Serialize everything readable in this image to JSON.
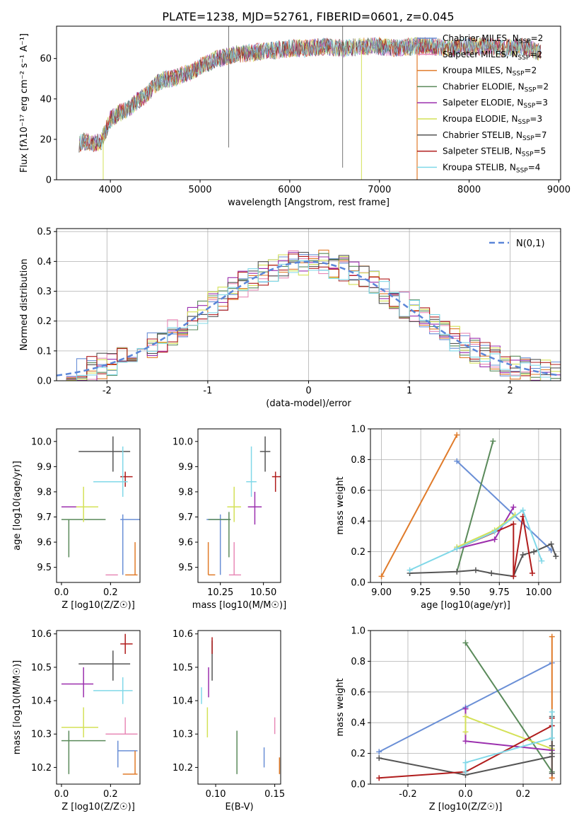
{
  "title": "PLATE=1238, MJD=52761, FIBERID=0601, z=0.045",
  "colors": {
    "chabrier_miles": "#6a8fd6",
    "salpeter_miles": "#e88ab7",
    "kroupa_miles": "#e07b2a",
    "chabrier_elodie": "#5a8a5a",
    "salpeter_elodie": "#9b2fae",
    "kroupa_elodie": "#d4e157",
    "chabrier_stelib": "#555555",
    "salpeter_stelib": "#b01c1c",
    "kroupa_stelib": "#80d8e8"
  },
  "chart_data": [
    {
      "id": "spectrum",
      "type": "line",
      "title": "PLATE=1238, MJD=52761, FIBERID=0601, z=0.045",
      "xlabel": "wavelength [Angstrom, rest frame]",
      "ylabel": "Flux [fλ10⁻¹⁷ erg cm⁻² s⁻¹ A⁻¹]",
      "xlim": [
        3400,
        9020
      ],
      "ylim": [
        0,
        76
      ],
      "xticks": [
        4000,
        5000,
        6000,
        7000,
        8000,
        9000
      ],
      "yticks": [
        0,
        20,
        40,
        60
      ],
      "continuum": {
        "x": [
          3650,
          3700,
          3800,
          3900,
          4000,
          4100,
          4200,
          4300,
          4400,
          4500,
          4600,
          4700,
          4800,
          4900,
          5000,
          5200,
          5400,
          5600,
          5800,
          6000,
          6200,
          6400,
          6600,
          6800,
          7000,
          7200,
          7400,
          7600,
          7800,
          8000,
          8200,
          8400,
          8600,
          8800
        ],
        "y": [
          18,
          19,
          18,
          19,
          30,
          33,
          35,
          39,
          42,
          47,
          50,
          50,
          52,
          53,
          56,
          60,
          62,
          63,
          64,
          65,
          65,
          66,
          65,
          66,
          66,
          65,
          66,
          66,
          65,
          66,
          66,
          65,
          66,
          63
        ]
      },
      "legend": [
        {
          "name": "Chabrier MILES, N_SSP=2",
          "color": "#6a8fd6"
        },
        {
          "name": "Salpeter MILES, N_SSP=2",
          "color": "#e88ab7"
        },
        {
          "name": "Kroupa MILES, N_SSP=2",
          "color": "#e07b2a"
        },
        {
          "name": "Chabrier ELODIE, N_SSP=2",
          "color": "#5a8a5a"
        },
        {
          "name": "Salpeter ELODIE, N_SSP=3",
          "color": "#9b2fae"
        },
        {
          "name": "Kroupa ELODIE, N_SSP=3",
          "color": "#d4e157"
        },
        {
          "name": "Chabrier STELIB, N_SSP=7",
          "color": "#555555"
        },
        {
          "name": "Salpeter STELIB, N_SSP=5",
          "color": "#b01c1c"
        },
        {
          "name": "Kroupa STELIB, N_SSP=4",
          "color": "#80d8e8"
        }
      ]
    },
    {
      "id": "residuals",
      "type": "histogram",
      "xlabel": "(data-model)/error",
      "ylabel": "Normed distribution",
      "xlim": [
        -2.5,
        2.5
      ],
      "ylim": [
        0,
        0.51
      ],
      "xticks": [
        -2,
        -1,
        0,
        1,
        2
      ],
      "yticks": [
        0.0,
        0.1,
        0.2,
        0.3,
        0.4,
        0.5
      ],
      "legend": "N(0,1)",
      "gaussian": {
        "mean": 0,
        "sigma": 1
      }
    },
    {
      "id": "age_vs_Z",
      "type": "errorbar",
      "xlabel": "Z [log10(Z/Z☉)]",
      "ylabel": "age  [log10(age/yr)]",
      "xlim": [
        -0.02,
        0.32
      ],
      "ylim": [
        9.44,
        10.05
      ],
      "xticks": [
        0.0,
        0.2
      ],
      "yticks": [
        9.5,
        9.6,
        9.7,
        9.8,
        9.9,
        10.0
      ],
      "points": [
        {
          "series": "chabrier_miles",
          "x": 0.25,
          "y": 9.69,
          "x_lo": 0.24,
          "x_hi": 0.32,
          "y_lo": 9.47,
          "y_hi": 9.71
        },
        {
          "series": "salpeter_miles",
          "x": 0.2,
          "y": 9.47,
          "x_lo": 0.18,
          "x_hi": 0.23,
          "y_lo": 9.47,
          "y_hi": 9.47
        },
        {
          "series": "kroupa_miles",
          "x": 0.3,
          "y": 9.47,
          "x_lo": 0.26,
          "x_hi": 0.31,
          "y_lo": 9.47,
          "y_hi": 9.6
        },
        {
          "series": "chabrier_elodie",
          "x": 0.03,
          "y": 9.69,
          "x_lo": 0.0,
          "x_hi": 0.18,
          "y_lo": 9.54,
          "y_hi": 9.69
        },
        {
          "series": "salpeter_elodie",
          "x": 0.05,
          "y": 9.74,
          "x_lo": 0.0,
          "x_hi": 0.13,
          "y_lo": 9.74,
          "y_hi": 9.74
        },
        {
          "series": "kroupa_elodie",
          "x": 0.09,
          "y": 9.74,
          "x_lo": 0.06,
          "x_hi": 0.15,
          "y_lo": 9.68,
          "y_hi": 9.82
        },
        {
          "series": "chabrier_stelib",
          "x": 0.21,
          "y": 9.96,
          "x_lo": 0.07,
          "x_hi": 0.28,
          "y_lo": 9.88,
          "y_hi": 10.02
        },
        {
          "series": "salpeter_stelib",
          "x": 0.26,
          "y": 9.86,
          "x_lo": 0.24,
          "x_hi": 0.29,
          "y_lo": 9.82,
          "y_hi": 9.88
        },
        {
          "series": "kroupa_stelib",
          "x": 0.25,
          "y": 9.84,
          "x_lo": 0.13,
          "x_hi": 0.27,
          "y_lo": 9.78,
          "y_hi": 9.98
        }
      ]
    },
    {
      "id": "age_vs_mass",
      "type": "errorbar",
      "xlabel": "mass [log10(M/M☉)]",
      "xlim": [
        10.12,
        10.6
      ],
      "ylim": [
        9.44,
        10.05
      ],
      "xticks": [
        10.25,
        10.5
      ],
      "yticks": [
        9.5,
        9.6,
        9.7,
        9.8,
        9.9,
        10.0
      ],
      "points": [
        {
          "series": "chabrier_miles",
          "x": 10.25,
          "y": 9.69,
          "x_lo": 10.17,
          "x_hi": 10.3,
          "y_lo": 9.47,
          "y_hi": 9.71
        },
        {
          "series": "salpeter_miles",
          "x": 10.33,
          "y": 9.47,
          "x_lo": 10.3,
          "x_hi": 10.37,
          "y_lo": 9.47,
          "y_hi": 9.6
        },
        {
          "series": "kroupa_miles",
          "x": 10.18,
          "y": 9.47,
          "x_lo": 10.18,
          "x_hi": 10.22,
          "y_lo": 9.47,
          "y_hi": 9.6
        },
        {
          "series": "chabrier_elodie",
          "x": 10.3,
          "y": 9.69,
          "x_lo": 10.18,
          "x_hi": 10.31,
          "y_lo": 9.54,
          "y_hi": 9.72
        },
        {
          "series": "salpeter_elodie",
          "x": 10.45,
          "y": 9.74,
          "x_lo": 10.41,
          "x_hi": 10.49,
          "y_lo": 9.67,
          "y_hi": 9.8
        },
        {
          "series": "kroupa_elodie",
          "x": 10.33,
          "y": 9.74,
          "x_lo": 10.29,
          "x_hi": 10.37,
          "y_lo": 9.68,
          "y_hi": 9.82
        },
        {
          "series": "chabrier_stelib",
          "x": 10.51,
          "y": 9.96,
          "x_lo": 10.48,
          "x_hi": 10.54,
          "y_lo": 9.88,
          "y_hi": 10.02
        },
        {
          "series": "salpeter_stelib",
          "x": 10.57,
          "y": 9.86,
          "x_lo": 10.55,
          "x_hi": 10.6,
          "y_lo": 9.8,
          "y_hi": 9.88
        },
        {
          "series": "kroupa_stelib",
          "x": 10.43,
          "y": 9.84,
          "x_lo": 10.4,
          "x_hi": 10.46,
          "y_lo": 9.78,
          "y_hi": 9.98
        }
      ]
    },
    {
      "id": "mass_weight_vs_age",
      "type": "line",
      "xlabel": "age  [log10(age/yr)]",
      "ylabel": "mass weight",
      "xlim": [
        8.93,
        10.14
      ],
      "ylim": [
        0,
        1.0
      ],
      "xticks": [
        9.0,
        9.25,
        9.5,
        9.75,
        10.0
      ],
      "yticks": [
        0.0,
        0.2,
        0.4,
        0.6,
        0.8,
        1.0
      ],
      "series": [
        {
          "name": "chabrier_miles",
          "x": [
            9.48,
            10.08
          ],
          "y": [
            0.79,
            0.21
          ]
        },
        {
          "name": "salpeter_miles",
          "x": [
            9.48,
            9.72
          ],
          "y": [
            0.22,
            0.28
          ]
        },
        {
          "name": "kroupa_miles",
          "x": [
            9.0,
            9.48
          ],
          "y": [
            0.04,
            0.96
          ]
        },
        {
          "name": "chabrier_elodie",
          "x": [
            9.48,
            9.71
          ],
          "y": [
            0.07,
            0.92
          ]
        },
        {
          "name": "salpeter_elodie",
          "x": [
            9.48,
            9.72,
            9.84
          ],
          "y": [
            0.22,
            0.28,
            0.49
          ]
        },
        {
          "name": "kroupa_elodie",
          "x": [
            9.48,
            9.72,
            9.85
          ],
          "y": [
            0.23,
            0.34,
            0.44
          ]
        },
        {
          "name": "chabrier_stelib",
          "x": [
            9.18,
            9.48,
            9.6,
            9.7,
            9.84,
            9.9,
            9.97,
            10.08,
            10.11
          ],
          "y": [
            0.06,
            0.07,
            0.08,
            0.06,
            0.04,
            0.18,
            0.2,
            0.25,
            0.17
          ]
        },
        {
          "name": "salpeter_stelib",
          "x": [
            9.48,
            9.84,
            9.84,
            9.9,
            9.96
          ],
          "y": [
            0.22,
            0.38,
            0.04,
            0.43,
            0.06
          ]
        },
        {
          "name": "kroupa_stelib",
          "x": [
            9.18,
            9.48,
            9.72,
            9.9,
            10.02
          ],
          "y": [
            0.08,
            0.22,
            0.33,
            0.47,
            0.14
          ]
        }
      ]
    },
    {
      "id": "mass_vs_Z",
      "type": "errorbar",
      "xlabel": "Z [log10(Z/Z☉)]",
      "ylabel": "mass [log10(M/M☉)]",
      "xlim": [
        -0.02,
        0.32
      ],
      "ylim": [
        10.15,
        10.61
      ],
      "xticks": [
        0.0,
        0.2
      ],
      "yticks": [
        10.2,
        10.3,
        10.4,
        10.5,
        10.6
      ],
      "points": [
        {
          "series": "chabrier_miles",
          "x": 0.23,
          "y": 10.25,
          "x_lo": 0.23,
          "x_hi": 0.31,
          "y_lo": 10.2,
          "y_hi": 10.28
        },
        {
          "series": "salpeter_miles",
          "x": 0.26,
          "y": 10.3,
          "x_lo": 0.18,
          "x_hi": 0.31,
          "y_lo": 10.3,
          "y_hi": 10.35
        },
        {
          "series": "kroupa_miles",
          "x": 0.3,
          "y": 10.18,
          "x_lo": 0.25,
          "x_hi": 0.31,
          "y_lo": 10.18,
          "y_hi": 10.25
        },
        {
          "series": "chabrier_elodie",
          "x": 0.03,
          "y": 10.28,
          "x_lo": 0.0,
          "x_hi": 0.18,
          "y_lo": 10.18,
          "y_hi": 10.31
        },
        {
          "series": "salpeter_elodie",
          "x": 0.09,
          "y": 10.45,
          "x_lo": 0.0,
          "x_hi": 0.13,
          "y_lo": 10.41,
          "y_hi": 10.5
        },
        {
          "series": "kroupa_elodie",
          "x": 0.09,
          "y": 10.32,
          "x_lo": 0.0,
          "x_hi": 0.15,
          "y_lo": 10.29,
          "y_hi": 10.38
        },
        {
          "series": "chabrier_stelib",
          "x": 0.21,
          "y": 10.51,
          "x_lo": 0.07,
          "x_hi": 0.28,
          "y_lo": 10.46,
          "y_hi": 10.55
        },
        {
          "series": "salpeter_stelib",
          "x": 0.26,
          "y": 10.57,
          "x_lo": 0.24,
          "x_hi": 0.29,
          "y_lo": 10.54,
          "y_hi": 10.6
        },
        {
          "series": "kroupa_stelib",
          "x": 0.25,
          "y": 10.43,
          "x_lo": 0.13,
          "x_hi": 0.29,
          "y_lo": 10.39,
          "y_hi": 10.47
        }
      ]
    },
    {
      "id": "mass_vs_ebv",
      "type": "errorbar",
      "xlabel": "E(B-V)",
      "xlim": [
        0.085,
        0.155
      ],
      "ylim": [
        10.15,
        10.61
      ],
      "xticks": [
        0.1,
        0.15
      ],
      "yticks": [
        10.2,
        10.3,
        10.4,
        10.5,
        10.6
      ],
      "points": [
        {
          "series": "chabrier_miles",
          "x": 0.141,
          "y": 10.23,
          "x_lo": 0.141,
          "x_hi": 0.141,
          "y_lo": 10.2,
          "y_hi": 10.26
        },
        {
          "series": "salpeter_miles",
          "x": 0.15,
          "y": 10.32,
          "x_lo": 0.15,
          "x_hi": 0.15,
          "y_lo": 10.3,
          "y_hi": 10.35
        },
        {
          "series": "kroupa_miles",
          "x": 0.154,
          "y": 10.2,
          "x_lo": 0.154,
          "x_hi": 0.154,
          "y_lo": 10.18,
          "y_hi": 10.23
        },
        {
          "series": "chabrier_elodie",
          "x": 0.118,
          "y": 10.25,
          "x_lo": 0.118,
          "x_hi": 0.118,
          "y_lo": 10.18,
          "y_hi": 10.31
        },
        {
          "series": "salpeter_elodie",
          "x": 0.094,
          "y": 10.46,
          "x_lo": 0.094,
          "x_hi": 0.094,
          "y_lo": 10.41,
          "y_hi": 10.5
        },
        {
          "series": "kroupa_elodie",
          "x": 0.093,
          "y": 10.34,
          "x_lo": 0.093,
          "x_hi": 0.093,
          "y_lo": 10.29,
          "y_hi": 10.38
        },
        {
          "series": "chabrier_stelib",
          "x": 0.097,
          "y": 10.53,
          "x_lo": 0.097,
          "x_hi": 0.097,
          "y_lo": 10.46,
          "y_hi": 10.58
        },
        {
          "series": "salpeter_stelib",
          "x": 0.097,
          "y": 10.56,
          "x_lo": 0.097,
          "x_hi": 0.097,
          "y_lo": 10.54,
          "y_hi": 10.59
        },
        {
          "series": "kroupa_stelib",
          "x": 0.088,
          "y": 10.41,
          "x_lo": 0.088,
          "x_hi": 0.088,
          "y_lo": 10.39,
          "y_hi": 10.44
        }
      ]
    },
    {
      "id": "mass_weight_vs_Z",
      "type": "line",
      "xlabel": "Z [log10(Z/Z☉)]",
      "ylabel": "mass weight",
      "xlim": [
        -0.33,
        0.33
      ],
      "ylim": [
        0,
        1.0
      ],
      "xticks": [
        -0.2,
        0.0,
        0.2
      ],
      "yticks": [
        0.0,
        0.2,
        0.4,
        0.6,
        0.8,
        1.0
      ],
      "series": [
        {
          "name": "chabrier_miles",
          "x": [
            -0.3,
            0.0,
            0.3
          ],
          "y": [
            0.21,
            0.5,
            0.79
          ]
        },
        {
          "name": "salpeter_miles",
          "x": [
            0.3,
            0.3
          ],
          "y": [
            0.38,
            0.04
          ]
        },
        {
          "name": "kroupa_miles",
          "x": [
            0.3,
            0.3
          ],
          "y": [
            0.96,
            0.04
          ]
        },
        {
          "name": "chabrier_elodie",
          "x": [
            0.0,
            0.3
          ],
          "y": [
            0.92,
            0.08
          ]
        },
        {
          "name": "salpeter_elodie",
          "x": [
            0.0,
            0.0,
            0.3
          ],
          "y": [
            0.49,
            0.28,
            0.22
          ]
        },
        {
          "name": "kroupa_elodie",
          "x": [
            0.0,
            0.0,
            0.3
          ],
          "y": [
            0.34,
            0.44,
            0.23
          ]
        },
        {
          "name": "chabrier_stelib",
          "x": [
            -0.3,
            0.0,
            0.3,
            0.3,
            0.3,
            0.3,
            0.3
          ],
          "y": [
            0.17,
            0.06,
            0.18,
            0.25,
            0.2,
            0.44,
            0.07
          ]
        },
        {
          "name": "salpeter_stelib",
          "x": [
            -0.3,
            0.0,
            0.3,
            0.3
          ],
          "y": [
            0.04,
            0.08,
            0.38,
            0.43
          ]
        },
        {
          "name": "kroupa_stelib",
          "x": [
            0.0,
            0.0,
            0.3,
            0.3
          ],
          "y": [
            0.08,
            0.14,
            0.3,
            0.47
          ]
        }
      ]
    }
  ]
}
